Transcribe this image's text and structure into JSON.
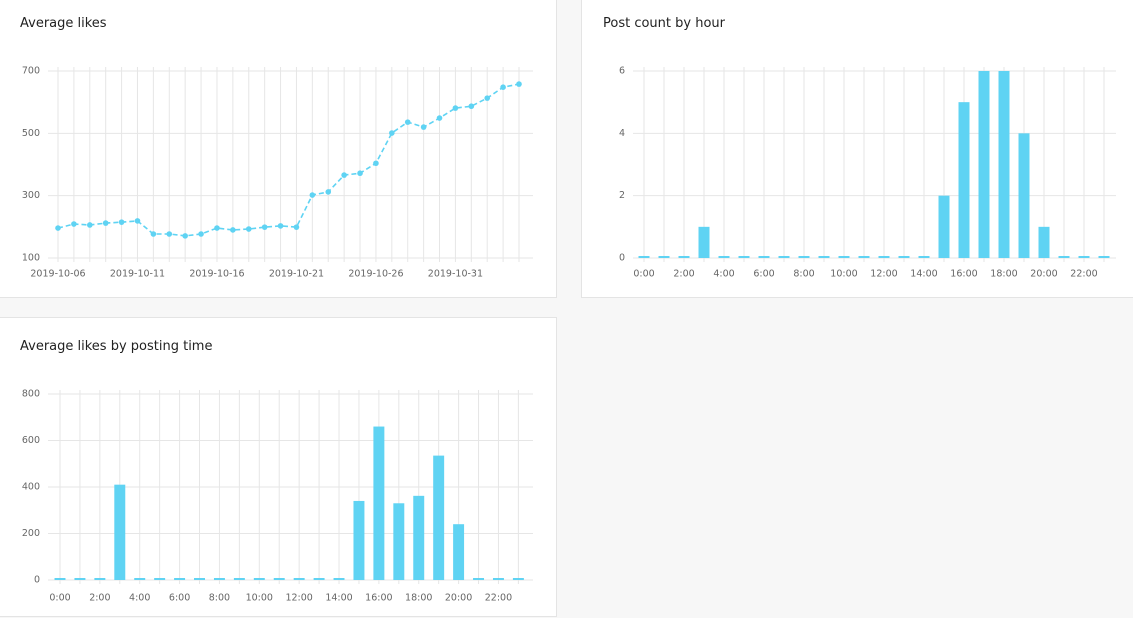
{
  "chart_data": [
    {
      "type": "line",
      "title": "Average likes",
      "color": "#5fd3f3",
      "grid": true,
      "x": [
        "2019-10-06",
        "2019-10-07",
        "2019-10-08",
        "2019-10-09",
        "2019-10-10",
        "2019-10-11",
        "2019-10-12",
        "2019-10-13",
        "2019-10-14",
        "2019-10-15",
        "2019-10-16",
        "2019-10-17",
        "2019-10-18",
        "2019-10-19",
        "2019-10-20",
        "2019-10-21",
        "2019-10-22",
        "2019-10-23",
        "2019-10-24",
        "2019-10-25",
        "2019-10-26",
        "2019-10-27",
        "2019-10-28",
        "2019-10-29",
        "2019-10-30",
        "2019-10-31",
        "2019-11-01",
        "2019-11-02",
        "2019-11-03",
        "2019-11-04"
      ],
      "values": [
        196,
        209,
        206,
        212,
        215,
        219,
        177,
        177,
        171,
        177,
        196,
        190,
        193,
        199,
        203,
        199,
        302,
        312,
        366,
        372,
        404,
        501,
        536,
        520,
        549,
        581,
        587,
        613,
        648,
        658
      ],
      "xticks": [
        "2019-10-06",
        "2019-10-11",
        "2019-10-16",
        "2019-10-21",
        "2019-10-26",
        "2019-10-31"
      ],
      "ylim": [
        100,
        700
      ],
      "yticks": [
        100,
        300,
        500,
        700
      ]
    },
    {
      "type": "bar",
      "title": "Post count by hour",
      "color": "#5fd3f3",
      "grid": true,
      "categories": [
        "0:00",
        null,
        "2:00",
        null,
        "4:00",
        null,
        "6:00",
        null,
        "8:00",
        null,
        "10:00",
        null,
        "12:00",
        null,
        "14:00",
        null,
        "16:00",
        null,
        "18:00",
        null,
        "20:00",
        null,
        "22:00",
        null
      ],
      "values": [
        0,
        0,
        0,
        1,
        0,
        0,
        0,
        0,
        0,
        0,
        0,
        0,
        0,
        0,
        0,
        2,
        5,
        6,
        6,
        4,
        1,
        0,
        0,
        0
      ],
      "ylim": [
        0,
        6
      ],
      "yticks": [
        0,
        2,
        4,
        6
      ]
    },
    {
      "type": "bar",
      "title": "Average likes by posting time",
      "color": "#5fd3f3",
      "grid": true,
      "categories": [
        "0:00",
        null,
        "2:00",
        null,
        "4:00",
        null,
        "6:00",
        null,
        "8:00",
        null,
        "10:00",
        null,
        "12:00",
        null,
        "14:00",
        null,
        "16:00",
        null,
        "18:00",
        null,
        "20:00",
        null,
        "22:00",
        null
      ],
      "values": [
        0,
        0,
        0,
        410,
        0,
        0,
        0,
        0,
        0,
        0,
        0,
        0,
        0,
        0,
        0,
        340,
        660,
        330,
        362,
        535,
        240,
        0,
        0,
        0
      ],
      "ylim": [
        0,
        800
      ],
      "yticks": [
        0,
        200,
        400,
        600,
        800
      ]
    }
  ]
}
